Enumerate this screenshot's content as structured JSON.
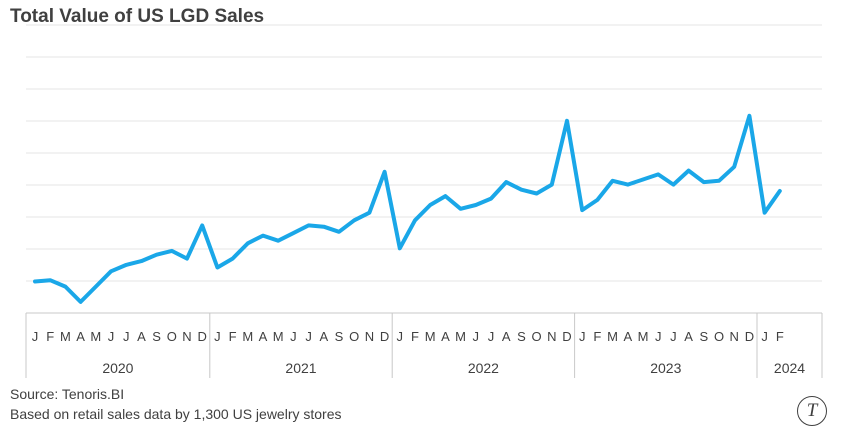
{
  "title": "Total Value of US LGD Sales",
  "source": "Source: Tenoris.BI",
  "note": "Based on retail sales data by 1,300 US jewelry stores",
  "logo_letter": "T",
  "colors": {
    "line": "#1AA7E8",
    "grid": "#e4e4e4",
    "text": "#404040",
    "axis": "#c8c8c8"
  },
  "chart_data": {
    "type": "line",
    "title": "Total Value of US LGD Sales",
    "xlabel": "",
    "ylabel": "",
    "ylim": [
      0,
      100
    ],
    "grid": "horizontal",
    "y_tick_labels_shown": false,
    "month_labels": [
      "J",
      "F",
      "M",
      "A",
      "M",
      "J",
      "J",
      "A",
      "S",
      "O",
      "N",
      "D"
    ],
    "years": [
      {
        "label": "2020",
        "months": 12
      },
      {
        "label": "2021",
        "months": 12
      },
      {
        "label": "2022",
        "months": 12
      },
      {
        "label": "2023",
        "months": 12
      },
      {
        "label": "2024",
        "months": 2
      }
    ],
    "series": [
      {
        "values": [
          10,
          10.5,
          8,
          2,
          8,
          14,
          16.5,
          18,
          20.5,
          22,
          19,
          32,
          15.5,
          19,
          25,
          28,
          26,
          29,
          32,
          31.5,
          29.5,
          34,
          37,
          53,
          23,
          34,
          40,
          43.5,
          38.5,
          40,
          42.5,
          49,
          46,
          44.5,
          48,
          73,
          38,
          42,
          49.5,
          48,
          50,
          52,
          48,
          53.5,
          49,
          49.5,
          55,
          75,
          37,
          45.5
        ]
      }
    ]
  }
}
